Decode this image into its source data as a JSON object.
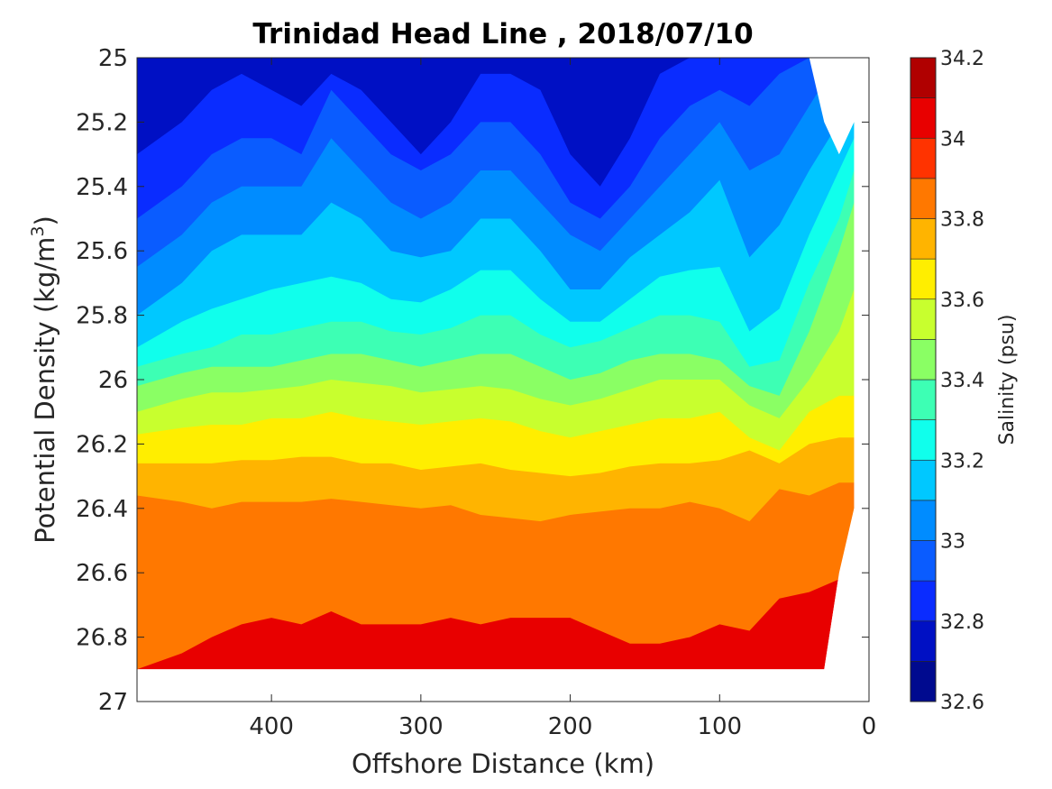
{
  "chart_data": {
    "type": "heatmap",
    "subtype": "filled-contour",
    "title": "Trinidad Head Line , 2018/07/10",
    "xlabel": "Offshore Distance (km)",
    "ylabel_base": "Potential Density (kg/m",
    "ylabel_sup": "3",
    "ylabel_close": ")",
    "xlim": [
      490,
      0
    ],
    "x_reversed": true,
    "ylim": [
      25,
      27
    ],
    "y_reversed": true,
    "xticks": [
      400,
      300,
      200,
      100,
      0
    ],
    "xtick_labels": [
      "400",
      "300",
      "200",
      "100",
      "0"
    ],
    "yticks": [
      25,
      25.2,
      25.4,
      25.6,
      25.8,
      26,
      26.2,
      26.4,
      26.6,
      26.8,
      27
    ],
    "ytick_labels": [
      "25",
      "25.2",
      "25.4",
      "25.6",
      "25.8",
      "26",
      "26.2",
      "26.4",
      "26.6",
      "26.8",
      "27"
    ],
    "colormap": "jet",
    "colorbar": {
      "label": "Salinity (psu)",
      "range": [
        32.6,
        34.2
      ],
      "levels": [
        32.6,
        32.7,
        32.8,
        32.9,
        33.0,
        33.1,
        33.2,
        33.3,
        33.4,
        33.5,
        33.6,
        33.7,
        33.8,
        33.9,
        34.0,
        34.1,
        34.2
      ],
      "tick_values": [
        32.6,
        32.8,
        33.0,
        33.2,
        33.4,
        33.6,
        33.8,
        34.0,
        34.2
      ],
      "tick_labels": [
        "32.6",
        "32.8",
        "33",
        "33.2",
        "33.4",
        "33.6",
        "33.8",
        "34",
        "34.2"
      ],
      "colors": [
        "#000a8f",
        "#0010c4",
        "#0a2cff",
        "#0a5cff",
        "#008cff",
        "#00c8ff",
        "#10ffec",
        "#3dffb4",
        "#8aff64",
        "#c8ff2e",
        "#ffee00",
        "#ffb400",
        "#ff7800",
        "#ff3300",
        "#e80000",
        "#b00000"
      ]
    },
    "data_coverage": {
      "x": [
        490,
        440,
        400,
        360,
        320,
        300,
        280,
        250,
        220,
        200,
        180,
        150,
        120,
        100,
        80,
        60,
        40,
        30,
        20,
        10
      ],
      "density_max": [
        26.9,
        26.9,
        26.9,
        26.9,
        26.9,
        26.9,
        26.9,
        26.9,
        26.9,
        26.9,
        26.9,
        26.9,
        26.9,
        26.9,
        26.9,
        26.9,
        26.9,
        26.9,
        26.6,
        26.4
      ],
      "density_min": [
        25,
        25,
        25,
        25,
        25,
        25,
        25,
        25,
        25,
        25,
        25,
        25,
        25,
        25,
        25,
        25,
        25,
        25.2,
        25.3,
        25.2
      ]
    },
    "isohalines": [
      {
        "psu": 32.8,
        "x": [
          490,
          460,
          440,
          420,
          400,
          380,
          360,
          340,
          320,
          300,
          280,
          260,
          240,
          220,
          200,
          180,
          160,
          140,
          120,
          100,
          80,
          60,
          40,
          20,
          10
        ],
        "density": [
          25.3,
          25.2,
          25.1,
          25.05,
          25.1,
          25.15,
          25.05,
          25.1,
          25.2,
          25.3,
          25.2,
          25.05,
          25.05,
          25.1,
          25.3,
          25.4,
          25.25,
          25.05,
          25.0,
          25.0,
          25.0,
          25.0,
          25.0,
          25.0,
          25.0
        ]
      },
      {
        "psu": 32.9,
        "x": [
          490,
          460,
          440,
          420,
          400,
          380,
          360,
          340,
          320,
          300,
          280,
          260,
          240,
          220,
          200,
          180,
          160,
          140,
          120,
          100,
          80,
          60,
          40,
          20,
          10
        ],
        "density": [
          25.5,
          25.4,
          25.3,
          25.25,
          25.25,
          25.3,
          25.1,
          25.2,
          25.3,
          25.35,
          25.3,
          25.2,
          25.2,
          25.3,
          25.45,
          25.5,
          25.4,
          25.25,
          25.15,
          25.1,
          25.15,
          25.05,
          25.0,
          25.0,
          25.0
        ]
      },
      {
        "psu": 33.0,
        "x": [
          490,
          460,
          440,
          420,
          400,
          380,
          360,
          340,
          320,
          300,
          280,
          260,
          240,
          220,
          200,
          180,
          160,
          140,
          120,
          100,
          80,
          60,
          40,
          20,
          10
        ],
        "density": [
          25.65,
          25.55,
          25.45,
          25.4,
          25.4,
          25.4,
          25.25,
          25.35,
          25.45,
          25.5,
          25.45,
          25.35,
          25.35,
          25.45,
          25.55,
          25.6,
          25.5,
          25.4,
          25.3,
          25.2,
          25.35,
          25.3,
          25.15,
          25.0,
          25.0
        ]
      },
      {
        "psu": 33.1,
        "x": [
          490,
          460,
          440,
          420,
          400,
          380,
          360,
          340,
          320,
          300,
          280,
          260,
          240,
          220,
          200,
          180,
          160,
          140,
          120,
          100,
          80,
          60,
          40,
          20,
          10
        ],
        "density": [
          25.8,
          25.7,
          25.6,
          25.55,
          25.55,
          25.55,
          25.45,
          25.5,
          25.6,
          25.62,
          25.6,
          25.5,
          25.5,
          25.6,
          25.72,
          25.72,
          25.62,
          25.55,
          25.48,
          25.38,
          25.62,
          25.52,
          25.35,
          25.2,
          25.2
        ]
      },
      {
        "psu": 33.2,
        "x": [
          490,
          460,
          440,
          420,
          400,
          380,
          360,
          340,
          320,
          300,
          280,
          260,
          240,
          220,
          200,
          180,
          160,
          140,
          120,
          100,
          80,
          60,
          40,
          20,
          10
        ],
        "density": [
          25.9,
          25.82,
          25.78,
          25.75,
          25.72,
          25.7,
          25.68,
          25.7,
          25.75,
          25.76,
          25.72,
          25.66,
          25.66,
          25.75,
          25.82,
          25.82,
          25.75,
          25.68,
          25.66,
          25.65,
          25.85,
          25.78,
          25.55,
          25.35,
          25.25
        ]
      },
      {
        "psu": 33.3,
        "x": [
          490,
          460,
          440,
          420,
          400,
          380,
          360,
          340,
          320,
          300,
          280,
          260,
          240,
          220,
          200,
          180,
          160,
          140,
          120,
          100,
          80,
          60,
          40,
          20,
          10
        ],
        "density": [
          25.96,
          25.92,
          25.9,
          25.86,
          25.86,
          25.84,
          25.82,
          25.82,
          25.85,
          25.86,
          25.84,
          25.8,
          25.8,
          25.86,
          25.9,
          25.88,
          25.84,
          25.8,
          25.8,
          25.82,
          25.96,
          25.94,
          25.7,
          25.5,
          25.35
        ]
      },
      {
        "psu": 33.4,
        "x": [
          490,
          460,
          440,
          420,
          400,
          380,
          360,
          340,
          320,
          300,
          280,
          260,
          240,
          220,
          200,
          180,
          160,
          140,
          120,
          100,
          80,
          60,
          40,
          20,
          10
        ],
        "density": [
          26.02,
          25.98,
          25.96,
          25.96,
          25.96,
          25.94,
          25.92,
          25.92,
          25.94,
          25.96,
          25.94,
          25.92,
          25.92,
          25.96,
          26.0,
          25.98,
          25.94,
          25.92,
          25.92,
          25.94,
          26.02,
          26.05,
          25.85,
          25.6,
          25.45
        ]
      },
      {
        "psu": 33.5,
        "x": [
          490,
          460,
          440,
          420,
          400,
          380,
          360,
          340,
          320,
          300,
          280,
          260,
          240,
          220,
          200,
          180,
          160,
          140,
          120,
          100,
          80,
          60,
          40,
          20,
          10
        ],
        "density": [
          26.1,
          26.06,
          26.04,
          26.04,
          26.03,
          26.02,
          26.0,
          26.01,
          26.02,
          26.04,
          26.03,
          26.02,
          26.03,
          26.06,
          26.08,
          26.06,
          26.03,
          26.0,
          26.0,
          26.0,
          26.08,
          26.12,
          26.0,
          25.85,
          25.72
        ]
      },
      {
        "psu": 33.6,
        "x": [
          490,
          460,
          440,
          420,
          400,
          380,
          360,
          340,
          320,
          300,
          280,
          260,
          240,
          220,
          200,
          180,
          160,
          140,
          120,
          100,
          80,
          60,
          40,
          20,
          10
        ],
        "density": [
          26.17,
          26.15,
          26.14,
          26.14,
          26.12,
          26.12,
          26.1,
          26.12,
          26.13,
          26.14,
          26.13,
          26.12,
          26.13,
          26.16,
          26.18,
          26.16,
          26.14,
          26.12,
          26.12,
          26.1,
          26.18,
          26.22,
          26.1,
          26.05,
          26.05
        ]
      },
      {
        "psu": 33.7,
        "x": [
          490,
          460,
          440,
          420,
          400,
          380,
          360,
          340,
          320,
          300,
          280,
          260,
          240,
          220,
          200,
          180,
          160,
          140,
          120,
          100,
          80,
          60,
          40,
          20,
          10
        ],
        "density": [
          26.26,
          26.26,
          26.26,
          26.25,
          26.25,
          26.24,
          26.24,
          26.26,
          26.26,
          26.28,
          26.27,
          26.26,
          26.28,
          26.29,
          26.3,
          26.29,
          26.27,
          26.26,
          26.26,
          26.25,
          26.22,
          26.26,
          26.2,
          26.18,
          26.18
        ]
      },
      {
        "psu": 33.8,
        "x": [
          490,
          460,
          440,
          420,
          400,
          380,
          360,
          340,
          320,
          300,
          280,
          260,
          240,
          220,
          200,
          180,
          160,
          140,
          120,
          100,
          80,
          60,
          40,
          20,
          10
        ],
        "density": [
          26.36,
          26.38,
          26.4,
          26.38,
          26.38,
          26.38,
          26.37,
          26.38,
          26.39,
          26.4,
          26.39,
          26.42,
          26.43,
          26.44,
          26.42,
          26.41,
          26.4,
          26.4,
          26.38,
          26.4,
          26.44,
          26.34,
          26.36,
          26.32,
          26.32
        ]
      },
      {
        "psu": 33.9,
        "x": [
          490,
          460,
          440,
          420,
          400,
          380,
          360,
          340,
          320,
          300,
          280,
          260,
          240,
          220,
          200,
          180,
          160,
          140,
          120,
          100,
          80,
          60,
          40,
          20,
          10
        ],
        "density": [
          26.9,
          26.85,
          26.8,
          26.76,
          26.74,
          26.76,
          26.72,
          26.76,
          26.76,
          26.76,
          26.74,
          26.76,
          26.74,
          26.74,
          26.74,
          26.78,
          26.82,
          26.82,
          26.8,
          26.76,
          26.78,
          26.68,
          26.66,
          26.62,
          26.6
        ]
      }
    ]
  }
}
